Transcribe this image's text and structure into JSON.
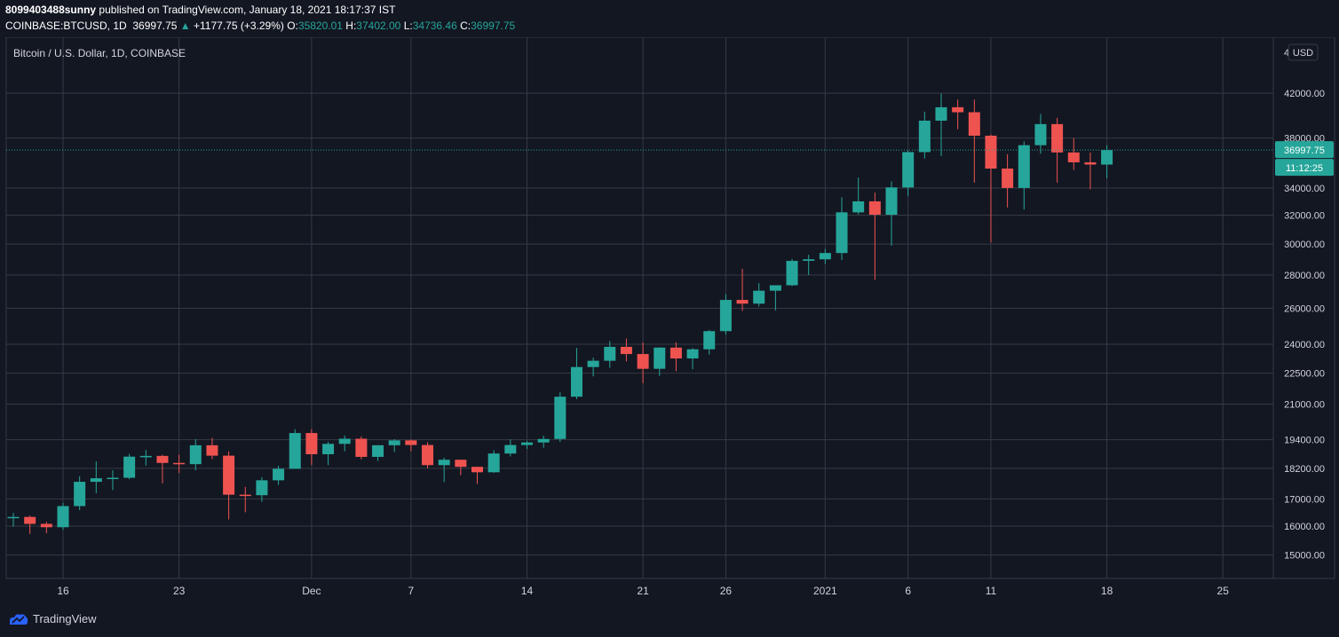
{
  "header": {
    "publisher": "8099403488sunny",
    "published_text": "published on TradingView.com, January 18, 2021 18:17:37 IST",
    "symbol": "COINBASE:BTCUSD, 1D",
    "last": "36997.75",
    "arrow": "▲",
    "change": "+1177.75 (+3.29%)",
    "o_label": "O:",
    "o_value": "35820.01",
    "h_label": "H:",
    "h_value": "37402.00",
    "l_label": "L:",
    "l_value": "34736.46",
    "c_label": "C:",
    "c_value": "36997.75"
  },
  "footer": {
    "brand": "TradingView"
  },
  "colors": {
    "background": "#131722",
    "up": "#26a69a",
    "down": "#ef5350",
    "grid": "#363a45",
    "text": "#d1d4dc"
  },
  "chart_data": {
    "type": "candlestick",
    "title": "Bitcoin / U.S. Dollar, 1D, COINBASE",
    "currency": "USD",
    "scale": "log",
    "y_ticks": [
      15000,
      16000,
      17000,
      18200,
      19400,
      21000,
      22500,
      24000,
      26000,
      28000,
      30000,
      32000,
      34000,
      38000,
      42000
    ],
    "y_tick_labels": [
      "15000.00",
      "16000.00",
      "17000.00",
      "18200.00",
      "19400.00",
      "21000.00",
      "22500.00",
      "24000.00",
      "26000.00",
      "28000.00",
      "30000.00",
      "32000.00",
      "34000.00",
      "38000.00",
      "42000.00"
    ],
    "y_top_partial_label": "4",
    "x_ticks": [
      {
        "date": "2020-11-16",
        "label": "16"
      },
      {
        "date": "2020-11-23",
        "label": "23"
      },
      {
        "date": "2020-12-01",
        "label": "Dec"
      },
      {
        "date": "2020-12-07",
        "label": "7"
      },
      {
        "date": "2020-12-14",
        "label": "14"
      },
      {
        "date": "2020-12-21",
        "label": "21"
      },
      {
        "date": "2020-12-26",
        "label": "26"
      },
      {
        "date": "2021-01-01",
        "label": "2021"
      },
      {
        "date": "2021-01-06",
        "label": "6"
      },
      {
        "date": "2021-01-11",
        "label": "11"
      },
      {
        "date": "2021-01-18",
        "label": "18"
      },
      {
        "date": "2021-01-25",
        "label": "25"
      }
    ],
    "last_price_label": "36997.75",
    "countdown_label": "11:12:25",
    "candles": [
      {
        "date": "2020-11-13",
        "o": 16300,
        "h": 16480,
        "l": 15980,
        "c": 16330
      },
      {
        "date": "2020-11-14",
        "o": 16330,
        "h": 16380,
        "l": 15720,
        "c": 16080
      },
      {
        "date": "2020-11-15",
        "o": 16080,
        "h": 16150,
        "l": 15750,
        "c": 15960
      },
      {
        "date": "2020-11-16",
        "o": 15960,
        "h": 16850,
        "l": 15870,
        "c": 16730
      },
      {
        "date": "2020-11-17",
        "o": 16730,
        "h": 17880,
        "l": 16580,
        "c": 17660
      },
      {
        "date": "2020-11-18",
        "o": 17660,
        "h": 18480,
        "l": 17220,
        "c": 17800
      },
      {
        "date": "2020-11-19",
        "o": 17800,
        "h": 18120,
        "l": 17340,
        "c": 17820
      },
      {
        "date": "2020-11-20",
        "o": 17820,
        "h": 18800,
        "l": 17760,
        "c": 18680
      },
      {
        "date": "2020-11-21",
        "o": 18680,
        "h": 18960,
        "l": 18310,
        "c": 18710
      },
      {
        "date": "2020-11-22",
        "o": 18710,
        "h": 18760,
        "l": 17600,
        "c": 18420
      },
      {
        "date": "2020-11-23",
        "o": 18420,
        "h": 18760,
        "l": 18010,
        "c": 18370
      },
      {
        "date": "2020-11-24",
        "o": 18370,
        "h": 19420,
        "l": 18120,
        "c": 19160
      },
      {
        "date": "2020-11-25",
        "o": 19160,
        "h": 19480,
        "l": 18570,
        "c": 18720
      },
      {
        "date": "2020-11-26",
        "o": 18720,
        "h": 18900,
        "l": 16240,
        "c": 17160
      },
      {
        "date": "2020-11-27",
        "o": 17160,
        "h": 17460,
        "l": 16500,
        "c": 17140
      },
      {
        "date": "2020-11-28",
        "o": 17140,
        "h": 17840,
        "l": 16890,
        "c": 17720
      },
      {
        "date": "2020-11-29",
        "o": 17720,
        "h": 18300,
        "l": 17540,
        "c": 18180
      },
      {
        "date": "2020-11-30",
        "o": 18180,
        "h": 19860,
        "l": 18180,
        "c": 19690
      },
      {
        "date": "2020-12-01",
        "o": 19690,
        "h": 19860,
        "l": 18330,
        "c": 18780
      },
      {
        "date": "2020-12-02",
        "o": 18780,
        "h": 19310,
        "l": 18330,
        "c": 19220
      },
      {
        "date": "2020-12-03",
        "o": 19220,
        "h": 19580,
        "l": 18900,
        "c": 19440
      },
      {
        "date": "2020-12-04",
        "o": 19440,
        "h": 19540,
        "l": 18570,
        "c": 18670
      },
      {
        "date": "2020-12-05",
        "o": 18670,
        "h": 19170,
        "l": 18500,
        "c": 19160
      },
      {
        "date": "2020-12-06",
        "o": 19160,
        "h": 19420,
        "l": 18870,
        "c": 19370
      },
      {
        "date": "2020-12-07",
        "o": 19370,
        "h": 19410,
        "l": 18900,
        "c": 19170
      },
      {
        "date": "2020-12-08",
        "o": 19170,
        "h": 19290,
        "l": 18200,
        "c": 18330
      },
      {
        "date": "2020-12-09",
        "o": 18330,
        "h": 18640,
        "l": 17650,
        "c": 18550
      },
      {
        "date": "2020-12-10",
        "o": 18550,
        "h": 18560,
        "l": 17920,
        "c": 18260
      },
      {
        "date": "2020-12-11",
        "o": 18260,
        "h": 18270,
        "l": 17580,
        "c": 18040
      },
      {
        "date": "2020-12-12",
        "o": 18040,
        "h": 18950,
        "l": 18020,
        "c": 18810
      },
      {
        "date": "2020-12-13",
        "o": 18810,
        "h": 19410,
        "l": 18690,
        "c": 19170
      },
      {
        "date": "2020-12-14",
        "o": 19170,
        "h": 19350,
        "l": 19000,
        "c": 19280
      },
      {
        "date": "2020-12-15",
        "o": 19280,
        "h": 19570,
        "l": 19050,
        "c": 19430
      },
      {
        "date": "2020-12-16",
        "o": 19430,
        "h": 21560,
        "l": 19300,
        "c": 21350
      },
      {
        "date": "2020-12-17",
        "o": 21350,
        "h": 23800,
        "l": 21230,
        "c": 22810
      },
      {
        "date": "2020-12-18",
        "o": 22810,
        "h": 23290,
        "l": 22340,
        "c": 23130
      },
      {
        "date": "2020-12-19",
        "o": 23130,
        "h": 24170,
        "l": 22770,
        "c": 23860
      },
      {
        "date": "2020-12-20",
        "o": 23860,
        "h": 24300,
        "l": 23100,
        "c": 23480
      },
      {
        "date": "2020-12-21",
        "o": 23480,
        "h": 24100,
        "l": 22000,
        "c": 22720
      },
      {
        "date": "2020-12-22",
        "o": 22720,
        "h": 23840,
        "l": 22360,
        "c": 23820
      },
      {
        "date": "2020-12-23",
        "o": 23820,
        "h": 24100,
        "l": 22600,
        "c": 23250
      },
      {
        "date": "2020-12-24",
        "o": 23250,
        "h": 23800,
        "l": 22700,
        "c": 23730
      },
      {
        "date": "2020-12-25",
        "o": 23730,
        "h": 24780,
        "l": 23450,
        "c": 24710
      },
      {
        "date": "2020-12-26",
        "o": 24710,
        "h": 26840,
        "l": 24520,
        "c": 26490
      },
      {
        "date": "2020-12-27",
        "o": 26490,
        "h": 28390,
        "l": 25850,
        "c": 26270
      },
      {
        "date": "2020-12-28",
        "o": 26270,
        "h": 27500,
        "l": 26100,
        "c": 27040
      },
      {
        "date": "2020-12-29",
        "o": 27040,
        "h": 27370,
        "l": 25880,
        "c": 27370
      },
      {
        "date": "2020-12-30",
        "o": 27370,
        "h": 29020,
        "l": 27320,
        "c": 28900
      },
      {
        "date": "2020-12-31",
        "o": 28900,
        "h": 29300,
        "l": 28000,
        "c": 29000
      },
      {
        "date": "2021-01-01",
        "o": 29000,
        "h": 29680,
        "l": 28700,
        "c": 29410
      },
      {
        "date": "2021-01-02",
        "o": 29410,
        "h": 33300,
        "l": 28950,
        "c": 32200
      },
      {
        "date": "2021-01-03",
        "o": 32200,
        "h": 34800,
        "l": 32050,
        "c": 33000
      },
      {
        "date": "2021-01-04",
        "o": 33000,
        "h": 33650,
        "l": 27700,
        "c": 32030
      },
      {
        "date": "2021-01-05",
        "o": 32030,
        "h": 34500,
        "l": 29900,
        "c": 34040
      },
      {
        "date": "2021-01-06",
        "o": 34040,
        "h": 36950,
        "l": 33400,
        "c": 36830
      },
      {
        "date": "2021-01-07",
        "o": 36830,
        "h": 40300,
        "l": 36300,
        "c": 39500
      },
      {
        "date": "2021-01-08",
        "o": 39500,
        "h": 41950,
        "l": 36500,
        "c": 40700
      },
      {
        "date": "2021-01-09",
        "o": 40700,
        "h": 41400,
        "l": 38750,
        "c": 40250
      },
      {
        "date": "2021-01-10",
        "o": 40250,
        "h": 41400,
        "l": 34400,
        "c": 38200
      },
      {
        "date": "2021-01-11",
        "o": 38200,
        "h": 38300,
        "l": 30100,
        "c": 35500
      },
      {
        "date": "2021-01-12",
        "o": 35500,
        "h": 36650,
        "l": 32550,
        "c": 34000
      },
      {
        "date": "2021-01-13",
        "o": 34000,
        "h": 37700,
        "l": 32400,
        "c": 37400
      },
      {
        "date": "2021-01-14",
        "o": 37400,
        "h": 40100,
        "l": 36700,
        "c": 39200
      },
      {
        "date": "2021-01-15",
        "o": 39200,
        "h": 39750,
        "l": 34400,
        "c": 36800
      },
      {
        "date": "2021-01-16",
        "o": 36800,
        "h": 38000,
        "l": 35400,
        "c": 36000
      },
      {
        "date": "2021-01-17",
        "o": 36000,
        "h": 36800,
        "l": 33900,
        "c": 35820
      },
      {
        "date": "2021-01-18",
        "o": 35820,
        "h": 37402,
        "l": 34736,
        "c": 36997.75
      }
    ]
  }
}
